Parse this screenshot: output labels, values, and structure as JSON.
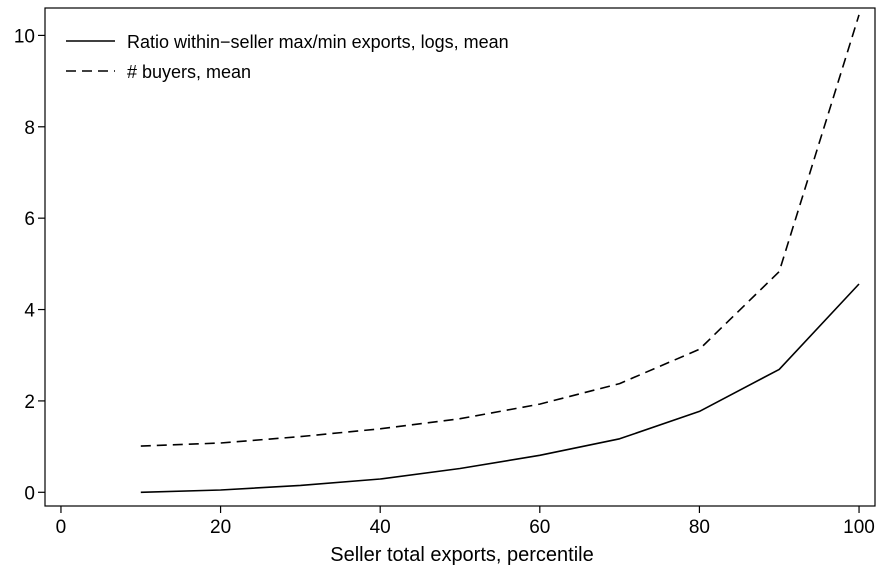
{
  "chart_data": {
    "type": "line",
    "title": "",
    "xlabel": "Seller total exports, percentile",
    "ylabel": "",
    "xlim": [
      -2,
      102
    ],
    "ylim": [
      -0.3,
      10.6
    ],
    "xticks": [
      0,
      20,
      40,
      60,
      80,
      100
    ],
    "yticks": [
      0,
      2,
      4,
      6,
      8,
      10
    ],
    "grid": false,
    "legend_position": "top-left",
    "x": [
      10,
      20,
      30,
      40,
      50,
      60,
      70,
      80,
      90,
      100
    ],
    "series": [
      {
        "name": "Ratio within−seller max/min exports, logs, mean",
        "style": "solid",
        "values": [
          0.0,
          0.05,
          0.15,
          0.29,
          0.52,
          0.81,
          1.17,
          1.77,
          2.69,
          4.56
        ]
      },
      {
        "name": "# buyers, mean",
        "style": "dashed",
        "values": [
          1.01,
          1.08,
          1.22,
          1.39,
          1.61,
          1.93,
          2.38,
          3.13,
          4.83,
          10.45
        ]
      }
    ],
    "colors": {
      "line": "#000000",
      "axis": "#000000",
      "background": "#ffffff"
    }
  }
}
